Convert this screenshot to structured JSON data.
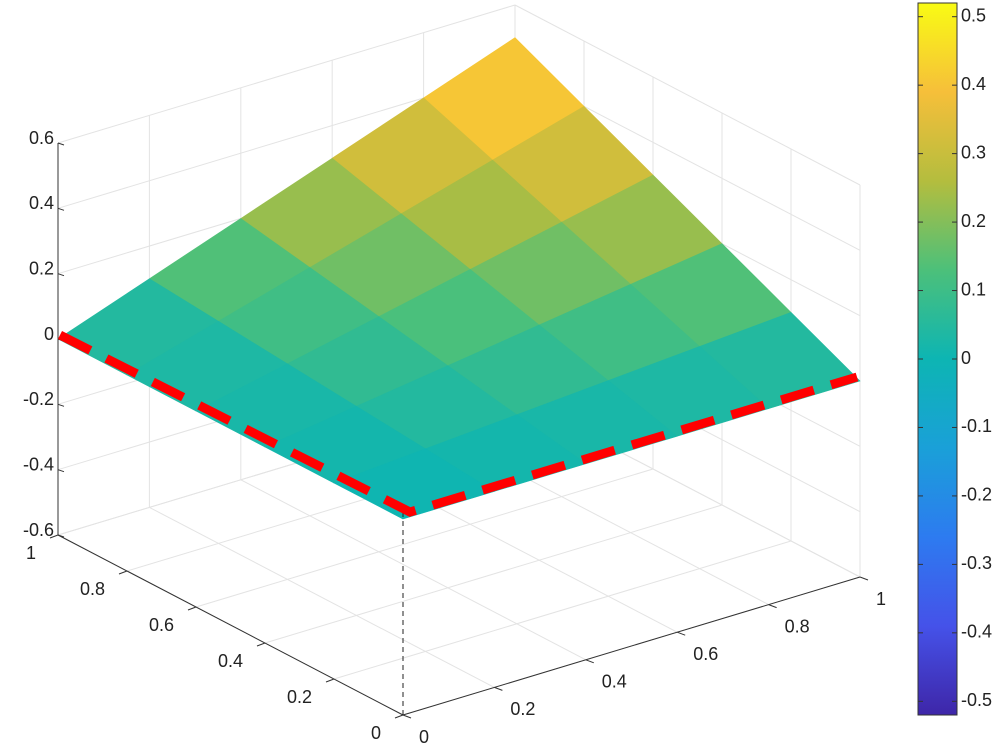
{
  "chart_data": {
    "type": "surface",
    "x": [
      0,
      0.2,
      0.4,
      0.6,
      0.8,
      1
    ],
    "y": [
      0,
      0.2,
      0.4,
      0.6,
      0.8,
      1
    ],
    "z": [
      [
        0,
        0,
        0,
        0,
        0,
        0
      ],
      [
        0,
        0.02,
        0.04,
        0.06,
        0.08,
        0.1
      ],
      [
        0,
        0.04,
        0.08,
        0.12,
        0.16,
        0.2
      ],
      [
        0,
        0.06,
        0.12,
        0.18,
        0.24,
        0.3
      ],
      [
        0,
        0.08,
        0.16,
        0.24,
        0.32,
        0.4
      ],
      [
        0,
        0.1,
        0.2,
        0.3,
        0.4,
        0.5
      ]
    ],
    "xlim": [
      0,
      1
    ],
    "xticks": [
      0,
      0.2,
      0.4,
      0.6,
      0.8,
      1
    ],
    "ylim": [
      0,
      1
    ],
    "yticks": [
      0,
      0.2,
      0.4,
      0.6,
      0.8,
      1
    ],
    "zlim": [
      -0.6,
      0.6
    ],
    "zticks": [
      -0.6,
      -0.4,
      -0.2,
      0,
      0.2,
      0.4,
      0.6
    ],
    "clim": [
      -0.52,
      0.52
    ],
    "colorbar_ticks": [
      -0.5,
      -0.4,
      -0.3,
      -0.2,
      -0.1,
      0,
      0.1,
      0.2,
      0.3,
      0.4,
      0.5
    ],
    "colormap": [
      "#3e26a8",
      "#4552e9",
      "#2d7bf0",
      "#1aa0d8",
      "#0db5b3",
      "#4cc07a",
      "#b4bd3e",
      "#f6bf3a",
      "#f9fb14"
    ],
    "grid": true
  }
}
